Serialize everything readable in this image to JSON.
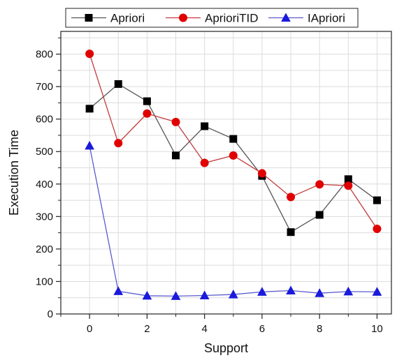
{
  "chart_data": {
    "type": "line",
    "title": "",
    "xlabel": "Support",
    "ylabel": "Execution Time",
    "xlim": [
      -1,
      10.5
    ],
    "ylim": [
      0,
      870
    ],
    "xticks": [
      0,
      2,
      4,
      6,
      8,
      10
    ],
    "yticks": [
      0,
      100,
      200,
      300,
      400,
      500,
      600,
      700,
      800
    ],
    "grid": true,
    "legend_position": "top",
    "series": [
      {
        "name": "Apriori",
        "color": "#000000",
        "line_color": "#555555",
        "marker": "square",
        "x": [
          0,
          1,
          2,
          3,
          4,
          5,
          6,
          7,
          8,
          9,
          10
        ],
        "values": [
          632,
          708,
          655,
          488,
          578,
          539,
          425,
          252,
          305,
          415,
          350
        ]
      },
      {
        "name": "AprioriTID",
        "color": "#e00000",
        "line_color": "#c23b3b",
        "marker": "circle",
        "x": [
          0,
          1,
          2,
          3,
          4,
          5,
          6,
          7,
          8,
          9,
          10
        ],
        "values": [
          801,
          526,
          617,
          591,
          465,
          488,
          433,
          360,
          399,
          395,
          262
        ]
      },
      {
        "name": "IApriori",
        "color": "#1a1adc",
        "line_color": "#5b5bd0",
        "marker": "triangle",
        "x": [
          0,
          1,
          2,
          3,
          4,
          5,
          6,
          7,
          8,
          9,
          10
        ],
        "values": [
          518,
          70,
          56,
          55,
          57,
          60,
          68,
          72,
          64,
          69,
          68
        ]
      }
    ]
  }
}
